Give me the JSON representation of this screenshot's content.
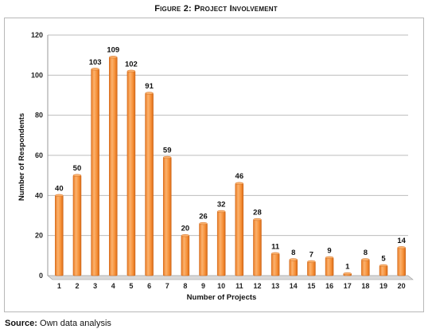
{
  "figure_title": "Figure 2: Project Involvement",
  "source": {
    "label": "Source:",
    "text": " Own data analysis"
  },
  "chart_data": {
    "type": "bar",
    "title": "Figure 2: Project Involvement",
    "xlabel": "Number of Projects",
    "ylabel": "Number of Respondents",
    "categories": [
      "1",
      "2",
      "3",
      "4",
      "5",
      "6",
      "7",
      "8",
      "9",
      "10",
      "11",
      "12",
      "13",
      "14",
      "15",
      "16",
      "17",
      "18",
      "19",
      "20"
    ],
    "values": [
      40,
      50,
      103,
      109,
      102,
      91,
      59,
      20,
      26,
      32,
      46,
      28,
      11,
      8,
      7,
      9,
      1,
      8,
      5,
      14
    ],
    "ylim": [
      0,
      120
    ],
    "yticks": [
      0,
      20,
      40,
      60,
      80,
      100,
      120
    ],
    "grid": true,
    "bar_color": "#f7923a",
    "bar_edge_color": "#c85f12"
  }
}
